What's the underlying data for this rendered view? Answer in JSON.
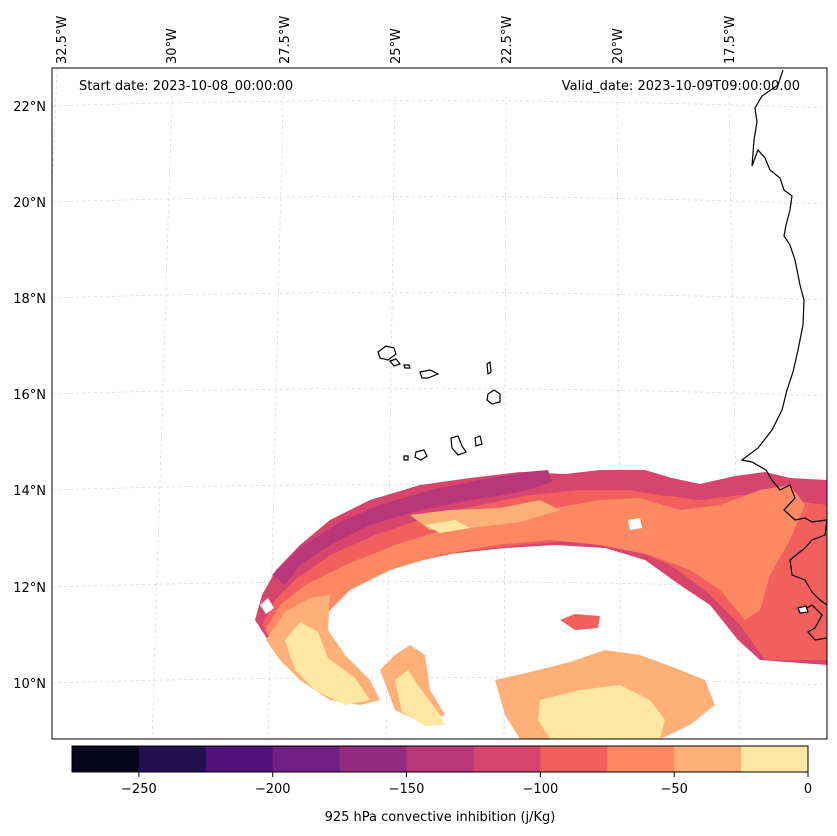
{
  "map": {
    "start_date_label": "Start date: 2023-10-08_00:00:00",
    "valid_date_label": "Valid_date: 2023-10-09T09:00:00.00",
    "lon_labels": [
      "32.5°W",
      "30°W",
      "27.5°W",
      "25°W",
      "22.5°W",
      "20°W",
      "17.5°W"
    ],
    "lat_labels": [
      "22°N",
      "20°N",
      "18°N",
      "16°N",
      "14°N",
      "12°N",
      "10°N"
    ],
    "variable": "925 hPa convective inhibition",
    "units": "j/Kg"
  },
  "colorbar": {
    "label": "925 hPa convective inhibition (j/Kg)",
    "tick_labels": [
      "−250",
      "−200",
      "−150",
      "−100",
      "−50",
      "0"
    ],
    "levels": [
      -275,
      -250,
      -225,
      -200,
      -175,
      -150,
      -125,
      -100,
      -75,
      -50,
      -25,
      0
    ],
    "colors": [
      "#07061c",
      "#221150",
      "#4f117b",
      "#711f81",
      "#932b80",
      "#b73779",
      "#d8456c",
      "#f1605d",
      "#fc8961",
      "#feb078",
      "#fde7a3"
    ]
  }
}
